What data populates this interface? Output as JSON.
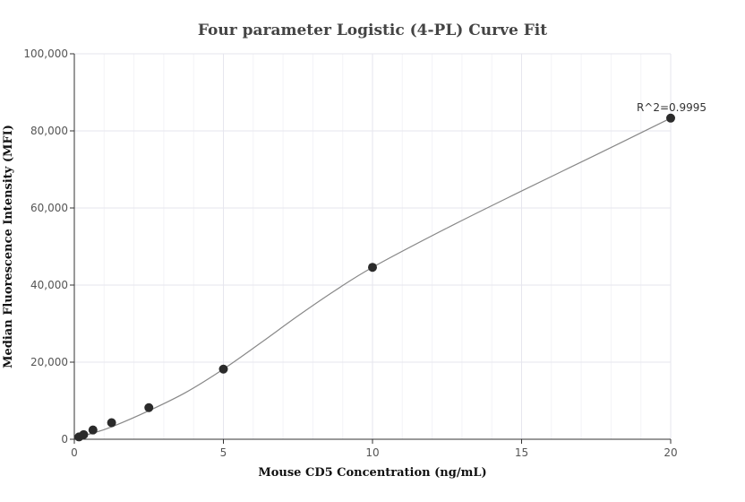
{
  "chart_data": {
    "type": "scatter",
    "title": "Four parameter Logistic (4-PL) Curve Fit",
    "xlabel": "Mouse CD5 Concentration (ng/mL)",
    "ylabel": "Median Fluorescence Intensity (MFI)",
    "xlim": [
      0,
      20
    ],
    "ylim": [
      0,
      100000
    ],
    "x_ticks": [
      0,
      5,
      10,
      15,
      20
    ],
    "x_tick_labels": [
      "0",
      "5",
      "10",
      "15",
      "20"
    ],
    "y_ticks": [
      0,
      20000,
      40000,
      60000,
      80000,
      100000
    ],
    "y_tick_labels": [
      "0",
      "20,000",
      "40,000",
      "60,000",
      "80,000",
      "100,000"
    ],
    "grid": true,
    "series": [
      {
        "points": [
          {
            "x": 0.156,
            "y": 600
          },
          {
            "x": 0.313,
            "y": 1200
          },
          {
            "x": 0.625,
            "y": 2400
          },
          {
            "x": 1.25,
            "y": 4300
          },
          {
            "x": 2.5,
            "y": 8200
          },
          {
            "x": 5,
            "y": 18200
          },
          {
            "x": 10,
            "y": 44600
          },
          {
            "x": 20,
            "y": 83300
          }
        ]
      }
    ],
    "fit_curve": [
      {
        "x": 0.156,
        "y": 700
      },
      {
        "x": 0.625,
        "y": 1600
      },
      {
        "x": 1.25,
        "y": 3200
      },
      {
        "x": 2.5,
        "y": 7400
      },
      {
        "x": 3.75,
        "y": 12200
      },
      {
        "x": 5,
        "y": 18200
      },
      {
        "x": 6.25,
        "y": 25000
      },
      {
        "x": 7.5,
        "y": 32000
      },
      {
        "x": 8.75,
        "y": 38600
      },
      {
        "x": 10,
        "y": 44600
      },
      {
        "x": 12.5,
        "y": 54800
      },
      {
        "x": 15,
        "y": 64400
      },
      {
        "x": 17.5,
        "y": 73800
      },
      {
        "x": 20,
        "y": 83300
      }
    ],
    "annotations": [
      {
        "text": "R^2=0.9995",
        "x": 20,
        "y": 83300
      }
    ],
    "colors": {
      "points": "#2b2b2b",
      "curve": "#888888"
    }
  }
}
